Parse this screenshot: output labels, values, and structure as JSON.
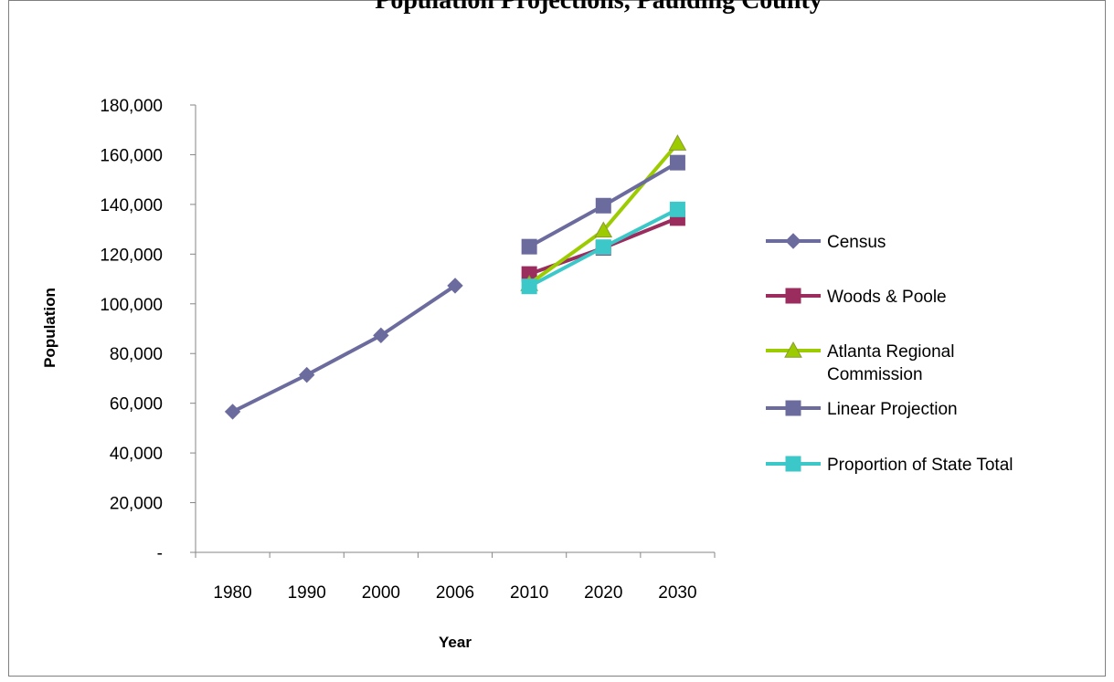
{
  "chart_data": {
    "type": "line",
    "title": "Population Projections, Paulding County",
    "xlabel": "Year",
    "ylabel": "Population",
    "categories": [
      "1980",
      "1990",
      "2000",
      "2006",
      "2010",
      "2020",
      "2030"
    ],
    "ylim": [
      0,
      180000
    ],
    "yticks": [
      0,
      20000,
      40000,
      60000,
      80000,
      100000,
      120000,
      140000,
      160000,
      180000
    ],
    "ytick_labels": [
      "-",
      "20,000",
      "40,000",
      "60,000",
      "80,000",
      "100,000",
      "120,000",
      "140,000",
      "160,000",
      "180,000"
    ],
    "grid": false,
    "legend_position": "right",
    "series": [
      {
        "name": "Census",
        "color": "#6b6b9e",
        "marker": "diamond",
        "values": [
          56600,
          71400,
          87300,
          107300,
          null,
          null,
          null
        ]
      },
      {
        "name": "Woods & Poole",
        "color": "#9b2d5e",
        "marker": "square",
        "values": [
          null,
          null,
          null,
          null,
          112000,
          122500,
          134500
        ]
      },
      {
        "name": "Atlanta Regional Commission",
        "color": "#9bcb00",
        "marker": "triangle",
        "values": [
          null,
          null,
          null,
          null,
          108000,
          129500,
          164500
        ]
      },
      {
        "name": "Linear Projection",
        "color": "#6b6b9e",
        "marker": "square",
        "values": [
          null,
          null,
          null,
          null,
          123000,
          139500,
          156800
        ]
      },
      {
        "name": "Proportion of State Total",
        "color": "#3cc8c8",
        "marker": "square",
        "values": [
          null,
          null,
          null,
          null,
          107000,
          122800,
          138000
        ]
      }
    ]
  }
}
